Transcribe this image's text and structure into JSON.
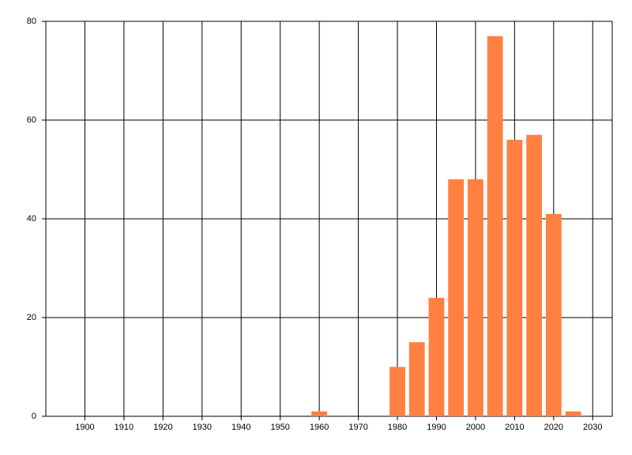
{
  "chart_data": {
    "type": "bar",
    "x": [
      1960,
      1980,
      1985,
      1990,
      1995,
      2000,
      2005,
      2010,
      2015,
      2020,
      2025
    ],
    "values": [
      1,
      10,
      15,
      24,
      48,
      48,
      77,
      56,
      57,
      41,
      1
    ],
    "color": "#ff8040",
    "xlim": [
      1890,
      2035
    ],
    "xticks": [
      1900,
      1910,
      1920,
      1930,
      1940,
      1950,
      1960,
      1970,
      1980,
      1990,
      2000,
      2010,
      2020,
      2030
    ],
    "ylim": [
      0,
      80
    ],
    "yticks": [
      0,
      20,
      40,
      60,
      80
    ],
    "grid": true
  }
}
